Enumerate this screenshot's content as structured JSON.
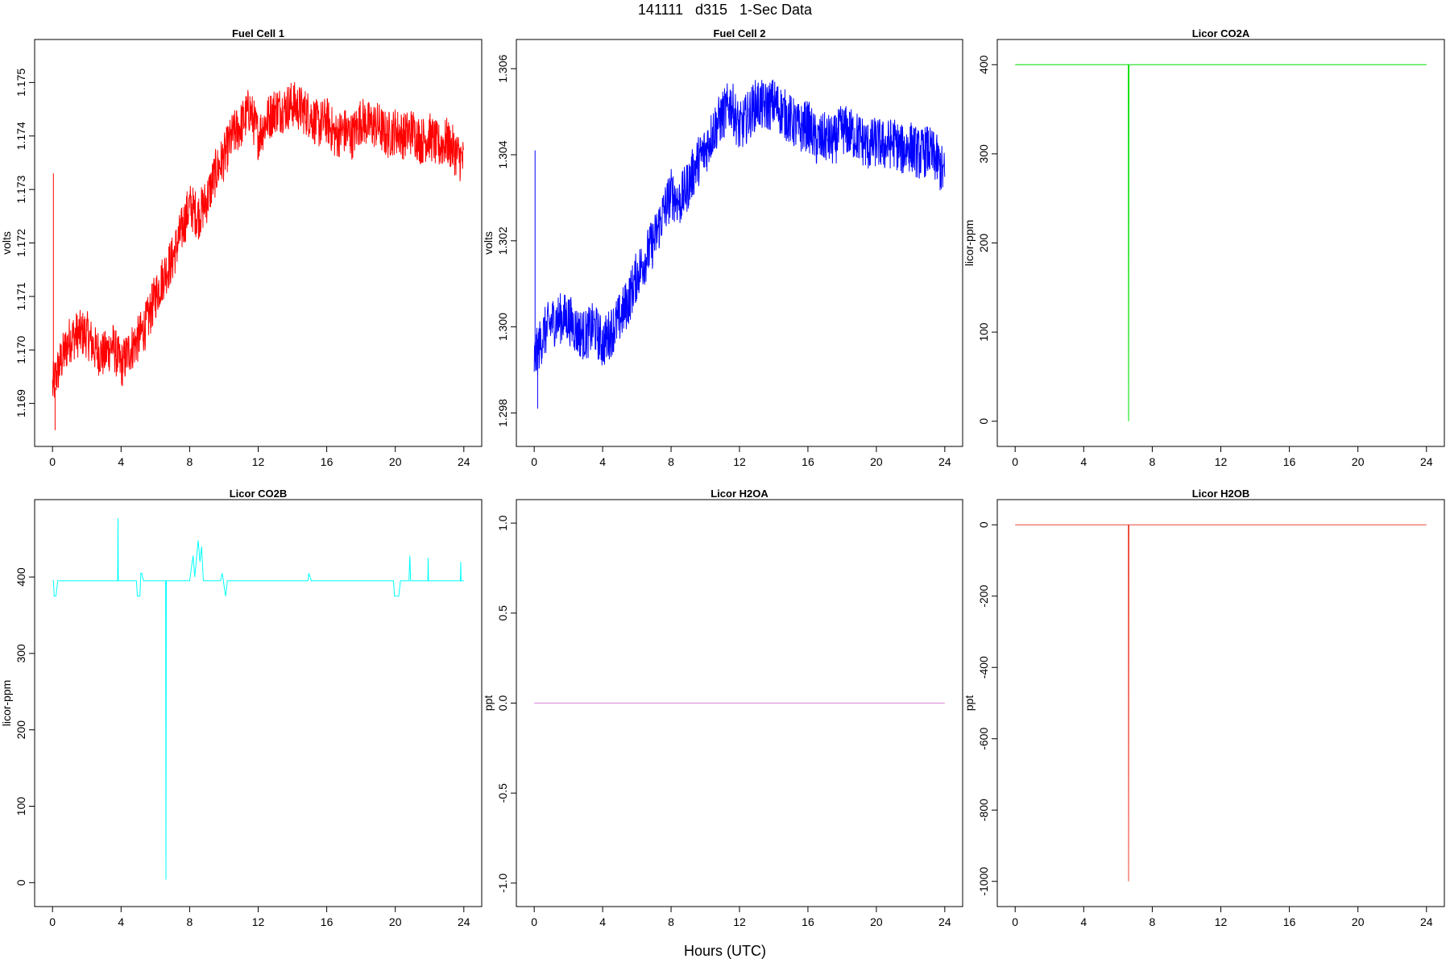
{
  "title": "141111   d315   1-Sec Data",
  "xlabel": "Hours (UTC)",
  "chart_data": [
    {
      "type": "line",
      "title": "Fuel Cell 1",
      "ylabel": "volts",
      "color": "#ff0000",
      "xlim": [
        0,
        24
      ],
      "ylim": [
        1.1685,
        1.1755
      ],
      "xticks": [
        0,
        4,
        8,
        12,
        16,
        20,
        24
      ],
      "yticks": [
        1.169,
        1.17,
        1.171,
        1.172,
        1.173,
        1.174,
        1.175
      ],
      "ytick_labels": [
        "1.169",
        "1.170",
        "1.171",
        "1.172",
        "1.173",
        "1.174",
        "1.175"
      ],
      "x": [
        0,
        0.5,
        1,
        1.5,
        2,
        2.5,
        3,
        3.5,
        4,
        4.5,
        5,
        5.5,
        6,
        6.5,
        7,
        7.5,
        8,
        8.5,
        9,
        9.5,
        10,
        10.5,
        11,
        11.5,
        12,
        12.5,
        13,
        13.5,
        14,
        14.5,
        15,
        15.5,
        16,
        16.5,
        17,
        17.5,
        18,
        18.5,
        19,
        19.5,
        20,
        20.5,
        21,
        21.5,
        22,
        22.5,
        23,
        23.5,
        24
      ],
      "y": [
        1.1693,
        1.1698,
        1.1702,
        1.1703,
        1.1703,
        1.17,
        1.1699,
        1.1701,
        1.1697,
        1.17,
        1.1702,
        1.1705,
        1.171,
        1.1714,
        1.1717,
        1.1722,
        1.1727,
        1.1725,
        1.1728,
        1.1733,
        1.1736,
        1.174,
        1.1742,
        1.1745,
        1.174,
        1.1743,
        1.1745,
        1.1745,
        1.1746,
        1.1745,
        1.1744,
        1.1742,
        1.1743,
        1.174,
        1.1741,
        1.174,
        1.1743,
        1.1742,
        1.1742,
        1.174,
        1.1741,
        1.174,
        1.1741,
        1.1739,
        1.174,
        1.1738,
        1.1739,
        1.1737,
        1.1735
      ],
      "noise": 0.00045,
      "spikes": [
        {
          "x": 0.05,
          "y": 1.1733
        },
        {
          "x": 0.15,
          "y": 1.1685
        }
      ]
    },
    {
      "type": "line",
      "title": "Fuel Cell 2",
      "ylabel": "volts",
      "color": "#0000ff",
      "xlim": [
        0,
        24
      ],
      "ylim": [
        1.2976,
        1.3063
      ],
      "xticks": [
        0,
        4,
        8,
        12,
        16,
        20,
        24
      ],
      "yticks": [
        1.298,
        1.3,
        1.302,
        1.304,
        1.306
      ],
      "ytick_labels": [
        "1.298",
        "1.300",
        "1.302",
        "1.304",
        "1.306"
      ],
      "x": [
        0,
        0.5,
        1,
        1.5,
        2,
        2.5,
        3,
        3.5,
        4,
        4.5,
        5,
        5.5,
        6,
        6.5,
        7,
        7.5,
        8,
        8.5,
        9,
        9.5,
        10,
        10.5,
        11,
        11.5,
        12,
        12.5,
        13,
        13.5,
        14,
        14.5,
        15,
        15.5,
        16,
        16.5,
        17,
        17.5,
        18,
        18.5,
        19,
        19.5,
        20,
        20.5,
        21,
        21.5,
        22,
        22.5,
        23,
        23.5,
        24
      ],
      "y": [
        1.2992,
        1.2998,
        1.3001,
        1.3002,
        1.3002,
        1.2999,
        1.2998,
        1.3,
        1.2996,
        1.2999,
        1.3002,
        1.3006,
        1.3012,
        1.3016,
        1.302,
        1.3026,
        1.3031,
        1.3029,
        1.3033,
        1.3038,
        1.3041,
        1.3046,
        1.3049,
        1.3052,
        1.3046,
        1.3049,
        1.3052,
        1.3051,
        1.3052,
        1.305,
        1.3048,
        1.3046,
        1.3047,
        1.3043,
        1.3044,
        1.3043,
        1.3046,
        1.3045,
        1.3044,
        1.3042,
        1.3043,
        1.3042,
        1.3043,
        1.3041,
        1.3042,
        1.304,
        1.3041,
        1.3039,
        1.3035
      ],
      "noise": 0.0006,
      "spikes": [
        {
          "x": 0.05,
          "y": 1.3041
        },
        {
          "x": 0.2,
          "y": 1.2981
        }
      ]
    },
    {
      "type": "line",
      "title": "Licor CO2A",
      "ylabel": "licor-ppm",
      "color": "#00e000",
      "xlim": [
        0,
        24
      ],
      "ylim": [
        -10,
        410
      ],
      "xticks": [
        0,
        4,
        8,
        12,
        16,
        20,
        24
      ],
      "yticks": [
        0,
        100,
        200,
        300,
        400
      ],
      "ytick_labels": [
        "0",
        "100",
        "200",
        "300",
        "400"
      ],
      "x": [
        0,
        6.6,
        6.62,
        6.64,
        24
      ],
      "y": [
        400,
        400,
        0,
        400,
        400
      ],
      "noise": 0,
      "spikes": []
    },
    {
      "type": "line",
      "title": "Licor CO2B",
      "ylabel": "licor-ppm",
      "color": "#00ffff",
      "xlim": [
        0,
        24
      ],
      "ylim": [
        -10,
        480
      ],
      "xticks": [
        0,
        4,
        8,
        12,
        16,
        20,
        24
      ],
      "yticks": [
        0,
        100,
        200,
        300,
        400
      ],
      "ytick_labels": [
        "0",
        "100",
        "200",
        "300",
        "400"
      ],
      "x": [
        0,
        0.05,
        0.1,
        0.2,
        0.3,
        3.8,
        3.82,
        3.84,
        4.9,
        4.95,
        5.1,
        5.15,
        5.2,
        5.3,
        6.6,
        6.62,
        6.64,
        8.0,
        8.2,
        8.3,
        8.5,
        8.6,
        8.7,
        8.8,
        9.8,
        9.9,
        10.1,
        10.2,
        14.9,
        14.95,
        15.1,
        15.2,
        19.9,
        19.95,
        20.2,
        20.3,
        20.8,
        20.85,
        20.9,
        21.9,
        21.92,
        21.94,
        23.8,
        23.82,
        23.84,
        24
      ],
      "y": [
        395,
        395,
        375,
        375,
        395,
        395,
        477,
        395,
        395,
        375,
        375,
        405,
        405,
        395,
        395,
        4,
        395,
        395,
        428,
        400,
        448,
        420,
        440,
        395,
        395,
        405,
        375,
        395,
        395,
        405,
        395,
        395,
        395,
        375,
        375,
        395,
        395,
        428,
        395,
        395,
        425,
        395,
        395,
        420,
        395,
        395
      ],
      "noise": 0,
      "spikes": []
    },
    {
      "type": "line",
      "title": "Licor H2OA",
      "ylabel": "ppt",
      "color": "#dd88dd",
      "xlim": [
        0,
        24
      ],
      "ylim": [
        -1.04,
        1.04
      ],
      "xticks": [
        0,
        4,
        8,
        12,
        16,
        20,
        24
      ],
      "yticks": [
        -1.0,
        -0.5,
        0.0,
        0.5,
        1.0
      ],
      "ytick_labels": [
        "-1.0",
        "-0.5",
        "0.0",
        "0.5",
        "1.0"
      ],
      "x": [
        0,
        24
      ],
      "y": [
        0,
        0
      ],
      "noise": 0,
      "spikes": []
    },
    {
      "type": "line",
      "title": "Licor H2OB",
      "ylabel": "ppt",
      "color": "#ee4433",
      "xlim": [
        0,
        24
      ],
      "ylim": [
        -1025,
        25
      ],
      "xticks": [
        0,
        4,
        8,
        12,
        16,
        20,
        24
      ],
      "yticks": [
        -1000,
        -800,
        -600,
        -400,
        -200,
        0
      ],
      "ytick_labels": [
        "-1000",
        "-800",
        "-600",
        "-400",
        "-200",
        "0"
      ],
      "x": [
        0,
        6.6,
        6.62,
        6.64,
        24
      ],
      "y": [
        0,
        0,
        -1000,
        0,
        0
      ],
      "noise": 0,
      "spikes": []
    }
  ]
}
